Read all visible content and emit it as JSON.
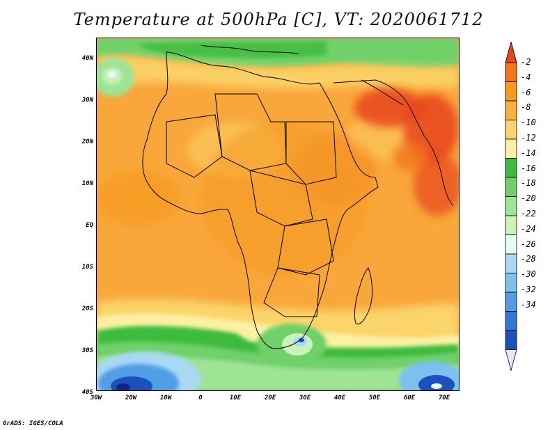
{
  "title": "Temperature at 500hPa [C], VT: 2020061712",
  "footer": "GrADS: IGES/COLA",
  "lat_labels": [
    "40N",
    "30N",
    "20N",
    "10N",
    "EQ",
    "10S",
    "20S",
    "30S",
    "40S"
  ],
  "lon_labels": [
    "30W",
    "20W",
    "10W",
    "0",
    "10E",
    "20E",
    "30E",
    "40E",
    "50E",
    "60E",
    "70E"
  ],
  "colorbar": {
    "labels": [
      "-2",
      "-4",
      "-6",
      "-8",
      "-10",
      "-12",
      "-14",
      "-16",
      "-18",
      "-20",
      "-22",
      "-24",
      "-26",
      "-28",
      "-30",
      "-32",
      "-34"
    ],
    "colors": [
      "#e8451a",
      "#f3751a",
      "#f7991f",
      "#f9b13a",
      "#fbd56b",
      "#fdf0a4",
      "#3dbb3c",
      "#6fd06a",
      "#9ee494",
      "#c9f2bd",
      "#e6fbf4",
      "#a9d8f4",
      "#7cc0ef",
      "#509ee6",
      "#2f78da",
      "#1b50bd",
      "#10248e"
    ]
  },
  "map_colors": {
    "ocean_warm": "#f9a63a",
    "land_warm": "#f59a24",
    "hot": "#e8451a",
    "mild": "#fbd56b",
    "cool_green": "#3dbb3c",
    "light_green": "#9ee494",
    "pale": "#e6fbf4",
    "blue": "#509ee6",
    "deep_blue": "#10248e"
  }
}
